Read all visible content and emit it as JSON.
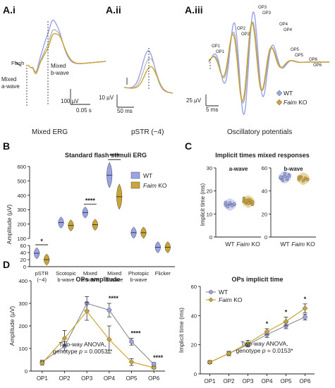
{
  "colors": {
    "wt": "#9aa3e6",
    "ko": "#caa435",
    "wt_line": "#8a8a8a",
    "ko_line": "#c9a227"
  },
  "panels": {
    "Ai": {
      "label": "A.i",
      "caption": "Mixed ERG",
      "flash": "Flash",
      "mixed_a": "Mixed\na-wave",
      "mixed_b": "Mixed\nb-wave",
      "scale_v": "100 µV",
      "scale_t": "0.05 s"
    },
    "Aii": {
      "label": "A.ii",
      "caption": "pSTR (−4)",
      "scale_v": "10 µV",
      "scale_t": "50 ms"
    },
    "Aiii": {
      "label": "A.iii",
      "caption": "Oscillatory potentials",
      "scale_v": "25 µV",
      "scale_t": "5 ms",
      "op_labels": [
        "OP1",
        "OP2",
        "OP3",
        "OP4",
        "OP5",
        "OP6"
      ],
      "legend": [
        {
          "pre": "",
          "it": "",
          "name": "WT"
        },
        {
          "pre": "",
          "it": "Faim",
          "name": " KO"
        }
      ]
    },
    "B": {
      "label": "B"
    },
    "C": {
      "label": "C"
    },
    "D": {
      "label": "D"
    }
  },
  "chart_data": [
    {
      "type": "violin",
      "title": "Standard flash stimuli ERG",
      "ylabel": "Amplitude (µV)",
      "ylim_top": [
        100,
        600
      ],
      "ylim_bottom": [
        0,
        60
      ],
      "yticks_top": [
        100,
        200,
        300,
        400,
        500,
        600
      ],
      "yticks_bottom": [
        0,
        20,
        40,
        60
      ],
      "categories": [
        "pSTR\n(−4)",
        "Scotopic\nb-wave",
        "Mixed\na-wave",
        "Mixed\nb-wave",
        "Photopic\nb-wave",
        "Flicker"
      ],
      "series": [
        {
          "name": "WT",
          "median": [
            38,
            210,
            280,
            540,
            140,
            55
          ]
        },
        {
          "name": "KO",
          "median": [
            20,
            190,
            195,
            390,
            140,
            55
          ]
        }
      ],
      "significance": [
        {
          "category": 0,
          "text": "*"
        },
        {
          "category": 2,
          "text": "****"
        },
        {
          "category": 3,
          "text": "****"
        }
      ],
      "legend": [
        {
          "it": "",
          "name": "WT"
        },
        {
          "it": "Faim",
          "name": " KO"
        }
      ]
    },
    {
      "type": "violin",
      "title": "Implicit times mixed responses",
      "ylabel": "Implicit time (ms)",
      "ylim": [
        0,
        30
      ],
      "yticks": [
        0,
        10,
        20,
        30
      ],
      "subplots": [
        {
          "title": "a-wave",
          "WT": [
            14.0,
            13.5,
            14.5,
            13.8,
            14.2,
            15.0,
            13.2,
            14.8,
            13.6,
            14.4
          ],
          "KO": [
            15.5,
            14.8,
            16.2,
            15.0,
            14.2,
            16.8,
            15.6,
            14.6,
            16.0,
            15.2
          ]
        },
        {
          "title": "b-wave",
          "WT": [
            51,
            52,
            53,
            50,
            54,
            52,
            49,
            55,
            51,
            53
          ],
          "KO": [
            50,
            52,
            49,
            51,
            50,
            52
          ]
        }
      ],
      "xticks": [
        {
          "it": "",
          "name": "WT"
        },
        {
          "it": "Faim",
          "name": " KO"
        }
      ]
    },
    {
      "type": "line",
      "title": "OPs amplitude",
      "ylabel": "Amplitude (µV)",
      "ylim": [
        0,
        400
      ],
      "yticks": [
        0,
        100,
        200,
        300,
        400
      ],
      "x": [
        "OP1",
        "OP2",
        "OP3",
        "OP4",
        "OP5",
        "OP6"
      ],
      "series": [
        {
          "name": "WT",
          "values": [
            40,
            110,
            300,
            270,
            130,
            30
          ],
          "err": [
            8,
            20,
            30,
            30,
            15,
            8
          ]
        },
        {
          "name": "KO",
          "values": [
            35,
            145,
            265,
            140,
            40,
            15
          ],
          "err": [
            8,
            35,
            40,
            60,
            15,
            5
          ]
        }
      ],
      "significance": [
        {
          "x": 3,
          "text": "****"
        },
        {
          "x": 4,
          "text": "****"
        },
        {
          "x": 5,
          "text": "****"
        }
      ],
      "annotation": [
        "Two-way ANOVA,",
        "genotype",
        "p",
        " = 0.0053**"
      ]
    },
    {
      "type": "line",
      "title": "OPs implicit time",
      "ylabel": "Implicit time (ms)",
      "ylim": [
        0,
        60
      ],
      "yticks": [
        0,
        20,
        40,
        60
      ],
      "x": [
        "OP1",
        "OP2",
        "OP3",
        "OP4",
        "OP5",
        "OP6"
      ],
      "series": [
        {
          "name": "WT",
          "values": [
            8,
            14,
            20,
            27,
            33,
            39
          ],
          "err": [
            1,
            1.5,
            1.5,
            2,
            2,
            2
          ]
        },
        {
          "name": "KO",
          "values": [
            8,
            14,
            21,
            29,
            36,
            45
          ],
          "err": [
            1,
            1.5,
            2,
            2,
            3,
            3
          ]
        }
      ],
      "significance": [
        {
          "x": 3,
          "text": "*"
        },
        {
          "x": 4,
          "text": "*"
        },
        {
          "x": 5,
          "text": "*"
        }
      ],
      "legend": [
        {
          "it": "",
          "name": "WT"
        },
        {
          "it": "Faim",
          "name": " KO"
        }
      ],
      "annotation": [
        "Two-way ANOVA,",
        "genotype",
        "p",
        " = 0.0153*"
      ]
    }
  ]
}
